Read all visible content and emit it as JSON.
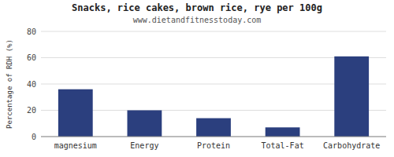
{
  "chart_data": {
    "type": "bar",
    "title": "Snacks, rice cakes, brown rice, rye per 100g",
    "subtitle": "www.dietandfitnesstoday.com",
    "ylabel": "Percentage of RDH (%)",
    "categories": [
      "magnesium",
      "Energy",
      "Protein",
      "Total-Fat",
      "Carbohydrate"
    ],
    "values": [
      36,
      20,
      14,
      7,
      61
    ],
    "color": "#2b3f7e",
    "ylim": [
      0,
      80
    ],
    "yticks": [
      0,
      20,
      40,
      60,
      80
    ],
    "grid": true
  }
}
